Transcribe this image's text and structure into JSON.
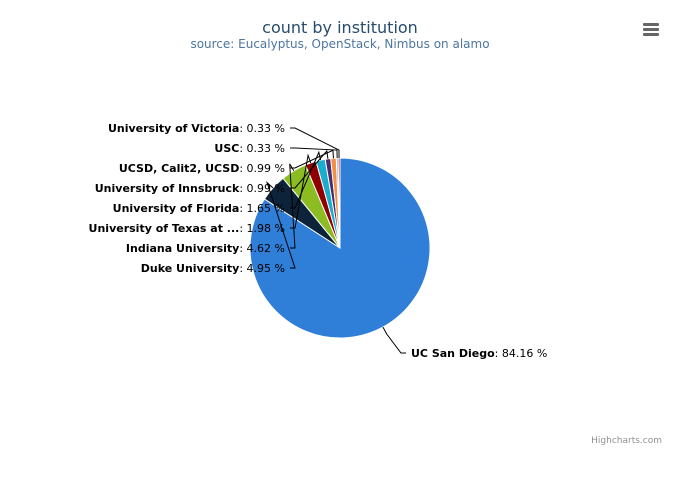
{
  "chart_data": {
    "type": "pie",
    "title": "count by institution",
    "subtitle": "source: Eucalyptus, OpenStack, Nimbus on alamo",
    "slices": [
      {
        "name": "UC San Diego",
        "value": 84.16,
        "label": "84.16 %",
        "color": "#2f7ed8"
      },
      {
        "name": "Duke University",
        "value": 4.95,
        "label": "4.95 %",
        "color": "#0d233a"
      },
      {
        "name": "Indiana University",
        "value": 4.62,
        "label": "4.62 %",
        "color": "#8bbc21"
      },
      {
        "name": "University of Texas at ...",
        "value": 1.98,
        "label": "1.98 %",
        "color": "#910000"
      },
      {
        "name": "University of Florida",
        "value": 1.65,
        "label": "1.65 %",
        "color": "#1aadce"
      },
      {
        "name": "University of Innsbruck",
        "value": 0.99,
        "label": "0.99 %",
        "color": "#492970"
      },
      {
        "name": "UCSD, Calit2, UCSD",
        "value": 0.99,
        "label": "0.99 %",
        "color": "#f28f43"
      },
      {
        "name": "USC",
        "value": 0.33,
        "label": "0.33 %",
        "color": "#77a1e5"
      },
      {
        "name": "University of Victoria",
        "value": 0.33,
        "label": "0.33 %",
        "color": "#c42525"
      }
    ]
  },
  "credits": "Highcharts.com",
  "menu_icon": "hamburger-menu-icon"
}
